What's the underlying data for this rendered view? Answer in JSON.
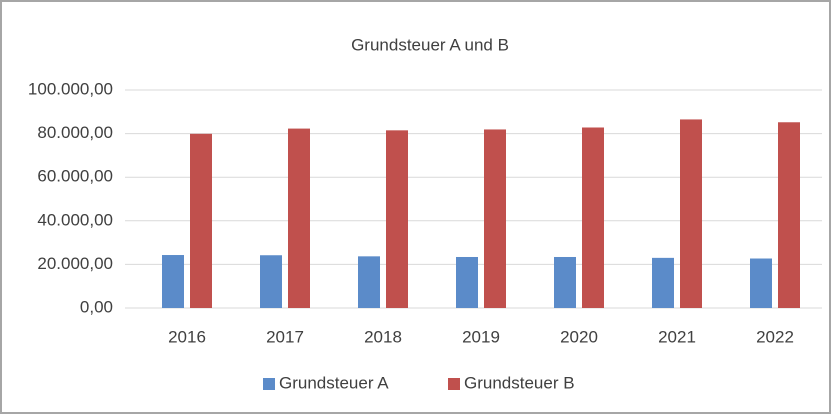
{
  "chart_data": {
    "type": "bar",
    "title": "Grundsteuer A und B",
    "categories": [
      "2016",
      "2017",
      "2018",
      "2019",
      "2020",
      "2021",
      "2022"
    ],
    "series": [
      {
        "name": "Grundsteuer A",
        "color": "#5b8bc9",
        "values": [
          24300,
          24200,
          23700,
          23400,
          23400,
          23000,
          22700
        ]
      },
      {
        "name": "Grundsteuer B",
        "color": "#c0504d",
        "values": [
          79900,
          82300,
          81500,
          81900,
          82800,
          86500,
          85200
        ]
      }
    ],
    "ylim": [
      0,
      100000
    ],
    "yticks": [
      {
        "value": 0,
        "label": "0,00"
      },
      {
        "value": 20000,
        "label": "20.000,00"
      },
      {
        "value": 40000,
        "label": "40.000,00"
      },
      {
        "value": 60000,
        "label": "60.000,00"
      },
      {
        "value": 80000,
        "label": "80.000,00"
      },
      {
        "value": 100000,
        "label": "100.000,00"
      }
    ],
    "grid": true,
    "legend": "bottom"
  }
}
